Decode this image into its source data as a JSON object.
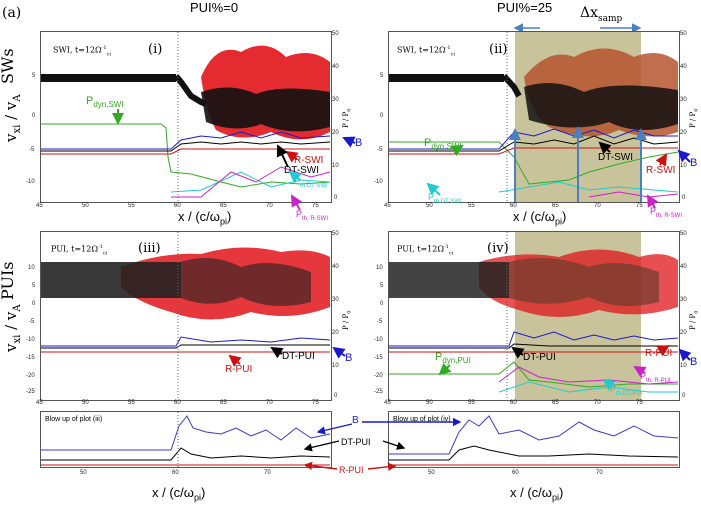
{
  "figure_label": "(a)",
  "column_titles": {
    "left": "PUI%=0",
    "right": "PUI%=25"
  },
  "delta_x_label": "Δx",
  "delta_x_sub": "samp",
  "row_labels": {
    "top": "SWs",
    "bottom": "PUIs"
  },
  "y_axis_label": "v",
  "y_axis_sub_x": "xi",
  "y_axis_sep": " / v",
  "y_axis_sub_a": "A",
  "right_axis_label": "P / P",
  "right_axis_sub": "0",
  "x_axis_label_pre": "x / (c/ω",
  "x_axis_label_sub": "pi",
  "x_axis_label_post": ")",
  "panels": [
    {
      "id": "i",
      "tag": "SWI, t=12Ω",
      "tag_sup": "-1",
      "tag_sub": "ci",
      "roman": "(i)"
    },
    {
      "id": "ii",
      "tag": "SWI, t=12Ω",
      "tag_sup": "-1",
      "tag_sub": "ci",
      "roman": "(ii)"
    },
    {
      "id": "iii",
      "tag": "PUI, t=12Ω",
      "tag_sup": "-1",
      "tag_sub": "ci",
      "roman": "(iii)"
    },
    {
      "id": "iv",
      "tag": "PUI, t=12Ω",
      "tag_sup": "-1",
      "tag_sub": "ci",
      "roman": "(iv)"
    }
  ],
  "ticks": {
    "x_main": [
      "45",
      "50",
      "55",
      "60",
      "65",
      "70",
      "75"
    ],
    "y_top": [
      "5",
      "0",
      "-5",
      "-10"
    ],
    "y_bottom": [
      "10",
      "5",
      "0",
      "-5",
      "-10",
      "-15",
      "-20",
      "-25"
    ],
    "y_right": [
      "50",
      "40",
      "30",
      "20",
      "10",
      "0"
    ],
    "x_blowup": [
      "50",
      "60",
      "70"
    ]
  },
  "annotations": {
    "pdyn_swi": {
      "main": "P",
      "sub": "dyn,SWI"
    },
    "b": "B",
    "r_swi": "R-SWI",
    "dt_swi": "DT-SWI",
    "pth_dt_swi": {
      "main": "P",
      "sub": "th,DT-SWI"
    },
    "pth_r_swi": {
      "main": "P",
      "sub": "th, R-SWI"
    },
    "r_pui": "R-PUI",
    "dt_pui": "DT-PUI",
    "pdyn_pui": {
      "main": "P",
      "sub": "dyn,PUI"
    },
    "pth_r_pui": {
      "main": "P",
      "sub": "th, R-PUI"
    },
    "pth_dt_pui": {
      "main": "P",
      "sub": "th,DT-PUI"
    }
  },
  "blowup": {
    "left_title": "Blow up of plot (iii)",
    "right_title": "Blow up of plot (iv)",
    "b": "B",
    "dt_pui": "DT-PUI",
    "r_pui": "R-PUI"
  },
  "colors": {
    "blue": "#1a1acc",
    "red": "#cc1111",
    "black": "#000000",
    "green": "#33aa22",
    "cyan": "#22cccc",
    "magenta": "#cc22cc",
    "olive": "#c8c39a",
    "orange_red": "#b5552f"
  }
}
